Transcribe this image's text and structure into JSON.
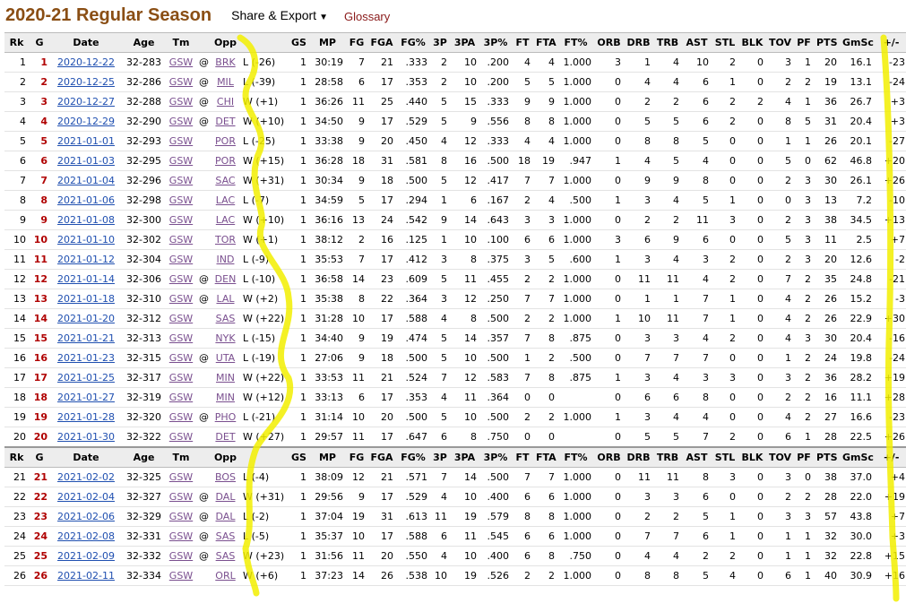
{
  "header": {
    "title": "2020-21 Regular Season",
    "share_label": "Share & Export",
    "share_caret": "▼",
    "glossary_label": "Glossary"
  },
  "columns": [
    "Rk",
    "G",
    "Date",
    "Age",
    "Tm",
    "",
    "Opp",
    "",
    "GS",
    "MP",
    "FG",
    "FGA",
    "FG%",
    "3P",
    "3PA",
    "3P%",
    "FT",
    "FTA",
    "FT%",
    "ORB",
    "DRB",
    "TRB",
    "AST",
    "STL",
    "BLK",
    "TOV",
    "PF",
    "PTS",
    "GmSc",
    "+/-"
  ],
  "rows": [
    [
      "1",
      "1",
      "2020-12-22",
      "32-283",
      "GSW",
      "@",
      "BRK",
      "L (-26)",
      "1",
      "30:19",
      "7",
      "21",
      ".333",
      "2",
      "10",
      ".200",
      "4",
      "4",
      "1.000",
      "3",
      "1",
      "4",
      "10",
      "2",
      "0",
      "3",
      "1",
      "20",
      "16.1",
      "-23"
    ],
    [
      "2",
      "2",
      "2020-12-25",
      "32-286",
      "GSW",
      "@",
      "MIL",
      "L (-39)",
      "1",
      "28:58",
      "6",
      "17",
      ".353",
      "2",
      "10",
      ".200",
      "5",
      "5",
      "1.000",
      "0",
      "4",
      "4",
      "6",
      "1",
      "0",
      "2",
      "2",
      "19",
      "13.1",
      "-24"
    ],
    [
      "3",
      "3",
      "2020-12-27",
      "32-288",
      "GSW",
      "@",
      "CHI",
      "W (+1)",
      "1",
      "36:26",
      "11",
      "25",
      ".440",
      "5",
      "15",
      ".333",
      "9",
      "9",
      "1.000",
      "0",
      "2",
      "2",
      "6",
      "2",
      "2",
      "4",
      "1",
      "36",
      "26.7",
      "+3"
    ],
    [
      "4",
      "4",
      "2020-12-29",
      "32-290",
      "GSW",
      "@",
      "DET",
      "W (+10)",
      "1",
      "34:50",
      "9",
      "17",
      ".529",
      "5",
      "9",
      ".556",
      "8",
      "8",
      "1.000",
      "0",
      "5",
      "5",
      "6",
      "2",
      "0",
      "8",
      "5",
      "31",
      "20.4",
      "+3"
    ],
    [
      "5",
      "5",
      "2021-01-01",
      "32-293",
      "GSW",
      "",
      "POR",
      "L (-25)",
      "1",
      "33:38",
      "9",
      "20",
      ".450",
      "4",
      "12",
      ".333",
      "4",
      "4",
      "1.000",
      "0",
      "8",
      "8",
      "5",
      "0",
      "0",
      "1",
      "1",
      "26",
      "20.1",
      "-27"
    ],
    [
      "6",
      "6",
      "2021-01-03",
      "32-295",
      "GSW",
      "",
      "POR",
      "W (+15)",
      "1",
      "36:28",
      "18",
      "31",
      ".581",
      "8",
      "16",
      ".500",
      "18",
      "19",
      ".947",
      "1",
      "4",
      "5",
      "4",
      "0",
      "0",
      "5",
      "0",
      "62",
      "46.8",
      "+20"
    ],
    [
      "7",
      "7",
      "2021-01-04",
      "32-296",
      "GSW",
      "",
      "SAC",
      "W (+31)",
      "1",
      "30:34",
      "9",
      "18",
      ".500",
      "5",
      "12",
      ".417",
      "7",
      "7",
      "1.000",
      "0",
      "9",
      "9",
      "8",
      "0",
      "0",
      "2",
      "3",
      "30",
      "26.1",
      "+26"
    ],
    [
      "8",
      "8",
      "2021-01-06",
      "32-298",
      "GSW",
      "",
      "LAC",
      "L (-7)",
      "1",
      "34:59",
      "5",
      "17",
      ".294",
      "1",
      "6",
      ".167",
      "2",
      "4",
      ".500",
      "1",
      "3",
      "4",
      "5",
      "1",
      "0",
      "0",
      "3",
      "13",
      "7.2",
      "-10"
    ],
    [
      "9",
      "9",
      "2021-01-08",
      "32-300",
      "GSW",
      "",
      "LAC",
      "W (+10)",
      "1",
      "36:16",
      "13",
      "24",
      ".542",
      "9",
      "14",
      ".643",
      "3",
      "3",
      "1.000",
      "0",
      "2",
      "2",
      "11",
      "3",
      "0",
      "2",
      "3",
      "38",
      "34.5",
      "+13"
    ],
    [
      "10",
      "10",
      "2021-01-10",
      "32-302",
      "GSW",
      "",
      "TOR",
      "W (+1)",
      "1",
      "38:12",
      "2",
      "16",
      ".125",
      "1",
      "10",
      ".100",
      "6",
      "6",
      "1.000",
      "3",
      "6",
      "9",
      "6",
      "0",
      "0",
      "5",
      "3",
      "11",
      "2.5",
      "+7"
    ],
    [
      "11",
      "11",
      "2021-01-12",
      "32-304",
      "GSW",
      "",
      "IND",
      "L (-9)",
      "1",
      "35:53",
      "7",
      "17",
      ".412",
      "3",
      "8",
      ".375",
      "3",
      "5",
      ".600",
      "1",
      "3",
      "4",
      "3",
      "2",
      "0",
      "2",
      "3",
      "20",
      "12.6",
      "-2"
    ],
    [
      "12",
      "12",
      "2021-01-14",
      "32-306",
      "GSW",
      "@",
      "DEN",
      "L (-10)",
      "1",
      "36:58",
      "14",
      "23",
      ".609",
      "5",
      "11",
      ".455",
      "2",
      "2",
      "1.000",
      "0",
      "11",
      "11",
      "4",
      "2",
      "0",
      "7",
      "2",
      "35",
      "24.8",
      "-21"
    ],
    [
      "13",
      "13",
      "2021-01-18",
      "32-310",
      "GSW",
      "@",
      "LAL",
      "W (+2)",
      "1",
      "35:38",
      "8",
      "22",
      ".364",
      "3",
      "12",
      ".250",
      "7",
      "7",
      "1.000",
      "0",
      "1",
      "1",
      "7",
      "1",
      "0",
      "4",
      "2",
      "26",
      "15.2",
      "-3"
    ],
    [
      "14",
      "14",
      "2021-01-20",
      "32-312",
      "GSW",
      "",
      "SAS",
      "W (+22)",
      "1",
      "31:28",
      "10",
      "17",
      ".588",
      "4",
      "8",
      ".500",
      "2",
      "2",
      "1.000",
      "1",
      "10",
      "11",
      "7",
      "1",
      "0",
      "4",
      "2",
      "26",
      "22.9",
      "+30"
    ],
    [
      "15",
      "15",
      "2021-01-21",
      "32-313",
      "GSW",
      "",
      "NYK",
      "L (-15)",
      "1",
      "34:40",
      "9",
      "19",
      ".474",
      "5",
      "14",
      ".357",
      "7",
      "8",
      ".875",
      "0",
      "3",
      "3",
      "4",
      "2",
      "0",
      "4",
      "3",
      "30",
      "20.4",
      "-16"
    ],
    [
      "16",
      "16",
      "2021-01-23",
      "32-315",
      "GSW",
      "@",
      "UTA",
      "L (-19)",
      "1",
      "27:06",
      "9",
      "18",
      ".500",
      "5",
      "10",
      ".500",
      "1",
      "2",
      ".500",
      "0",
      "7",
      "7",
      "7",
      "0",
      "0",
      "1",
      "2",
      "24",
      "19.8",
      "-24"
    ],
    [
      "17",
      "17",
      "2021-01-25",
      "32-317",
      "GSW",
      "",
      "MIN",
      "W (+22)",
      "1",
      "33:53",
      "11",
      "21",
      ".524",
      "7",
      "12",
      ".583",
      "7",
      "8",
      ".875",
      "1",
      "3",
      "4",
      "3",
      "3",
      "0",
      "3",
      "2",
      "36",
      "28.2",
      "+19"
    ],
    [
      "18",
      "18",
      "2021-01-27",
      "32-319",
      "GSW",
      "",
      "MIN",
      "W (+12)",
      "1",
      "33:13",
      "6",
      "17",
      ".353",
      "4",
      "11",
      ".364",
      "0",
      "0",
      "",
      "0",
      "6",
      "6",
      "8",
      "0",
      "0",
      "2",
      "2",
      "16",
      "11.1",
      "+28"
    ],
    [
      "19",
      "19",
      "2021-01-28",
      "32-320",
      "GSW",
      "@",
      "PHO",
      "L (-21)",
      "1",
      "31:14",
      "10",
      "20",
      ".500",
      "5",
      "10",
      ".500",
      "2",
      "2",
      "1.000",
      "1",
      "3",
      "4",
      "4",
      "0",
      "0",
      "4",
      "2",
      "27",
      "16.6",
      "-23"
    ],
    [
      "20",
      "20",
      "2021-01-30",
      "32-322",
      "GSW",
      "",
      "DET",
      "W (+27)",
      "1",
      "29:57",
      "11",
      "17",
      ".647",
      "6",
      "8",
      ".750",
      "0",
      "0",
      "",
      "0",
      "5",
      "5",
      "7",
      "2",
      "0",
      "6",
      "1",
      "28",
      "22.5",
      "+26"
    ],
    [
      "21",
      "21",
      "2021-02-02",
      "32-325",
      "GSW",
      "",
      "BOS",
      "L (-4)",
      "1",
      "38:09",
      "12",
      "21",
      ".571",
      "7",
      "14",
      ".500",
      "7",
      "7",
      "1.000",
      "0",
      "11",
      "11",
      "8",
      "3",
      "0",
      "3",
      "0",
      "38",
      "37.0",
      "+4"
    ],
    [
      "22",
      "22",
      "2021-02-04",
      "32-327",
      "GSW",
      "@",
      "DAL",
      "W (+31)",
      "1",
      "29:56",
      "9",
      "17",
      ".529",
      "4",
      "10",
      ".400",
      "6",
      "6",
      "1.000",
      "0",
      "3",
      "3",
      "6",
      "0",
      "0",
      "2",
      "2",
      "28",
      "22.0",
      "+19"
    ],
    [
      "23",
      "23",
      "2021-02-06",
      "32-329",
      "GSW",
      "@",
      "DAL",
      "L (-2)",
      "1",
      "37:04",
      "19",
      "31",
      ".613",
      "11",
      "19",
      ".579",
      "8",
      "8",
      "1.000",
      "0",
      "2",
      "2",
      "5",
      "1",
      "0",
      "3",
      "3",
      "57",
      "43.8",
      "+7"
    ],
    [
      "24",
      "24",
      "2021-02-08",
      "32-331",
      "GSW",
      "@",
      "SAS",
      "L (-5)",
      "1",
      "35:37",
      "10",
      "17",
      ".588",
      "6",
      "11",
      ".545",
      "6",
      "6",
      "1.000",
      "0",
      "7",
      "7",
      "6",
      "1",
      "0",
      "1",
      "1",
      "32",
      "30.0",
      "+3"
    ],
    [
      "25",
      "25",
      "2021-02-09",
      "32-332",
      "GSW",
      "@",
      "SAS",
      "W (+23)",
      "1",
      "31:56",
      "11",
      "20",
      ".550",
      "4",
      "10",
      ".400",
      "6",
      "8",
      ".750",
      "0",
      "4",
      "4",
      "2",
      "2",
      "0",
      "1",
      "1",
      "32",
      "22.8",
      "+15"
    ],
    [
      "26",
      "26",
      "2021-02-11",
      "32-334",
      "GSW",
      "",
      "ORL",
      "W (+6)",
      "1",
      "37:23",
      "14",
      "26",
      ".538",
      "10",
      "19",
      ".526",
      "2",
      "2",
      "1.000",
      "0",
      "8",
      "8",
      "5",
      "4",
      "0",
      "6",
      "1",
      "40",
      "30.9",
      "+16"
    ]
  ],
  "repeat_header_after_row": 20,
  "annotation_color": "#f2ee00"
}
